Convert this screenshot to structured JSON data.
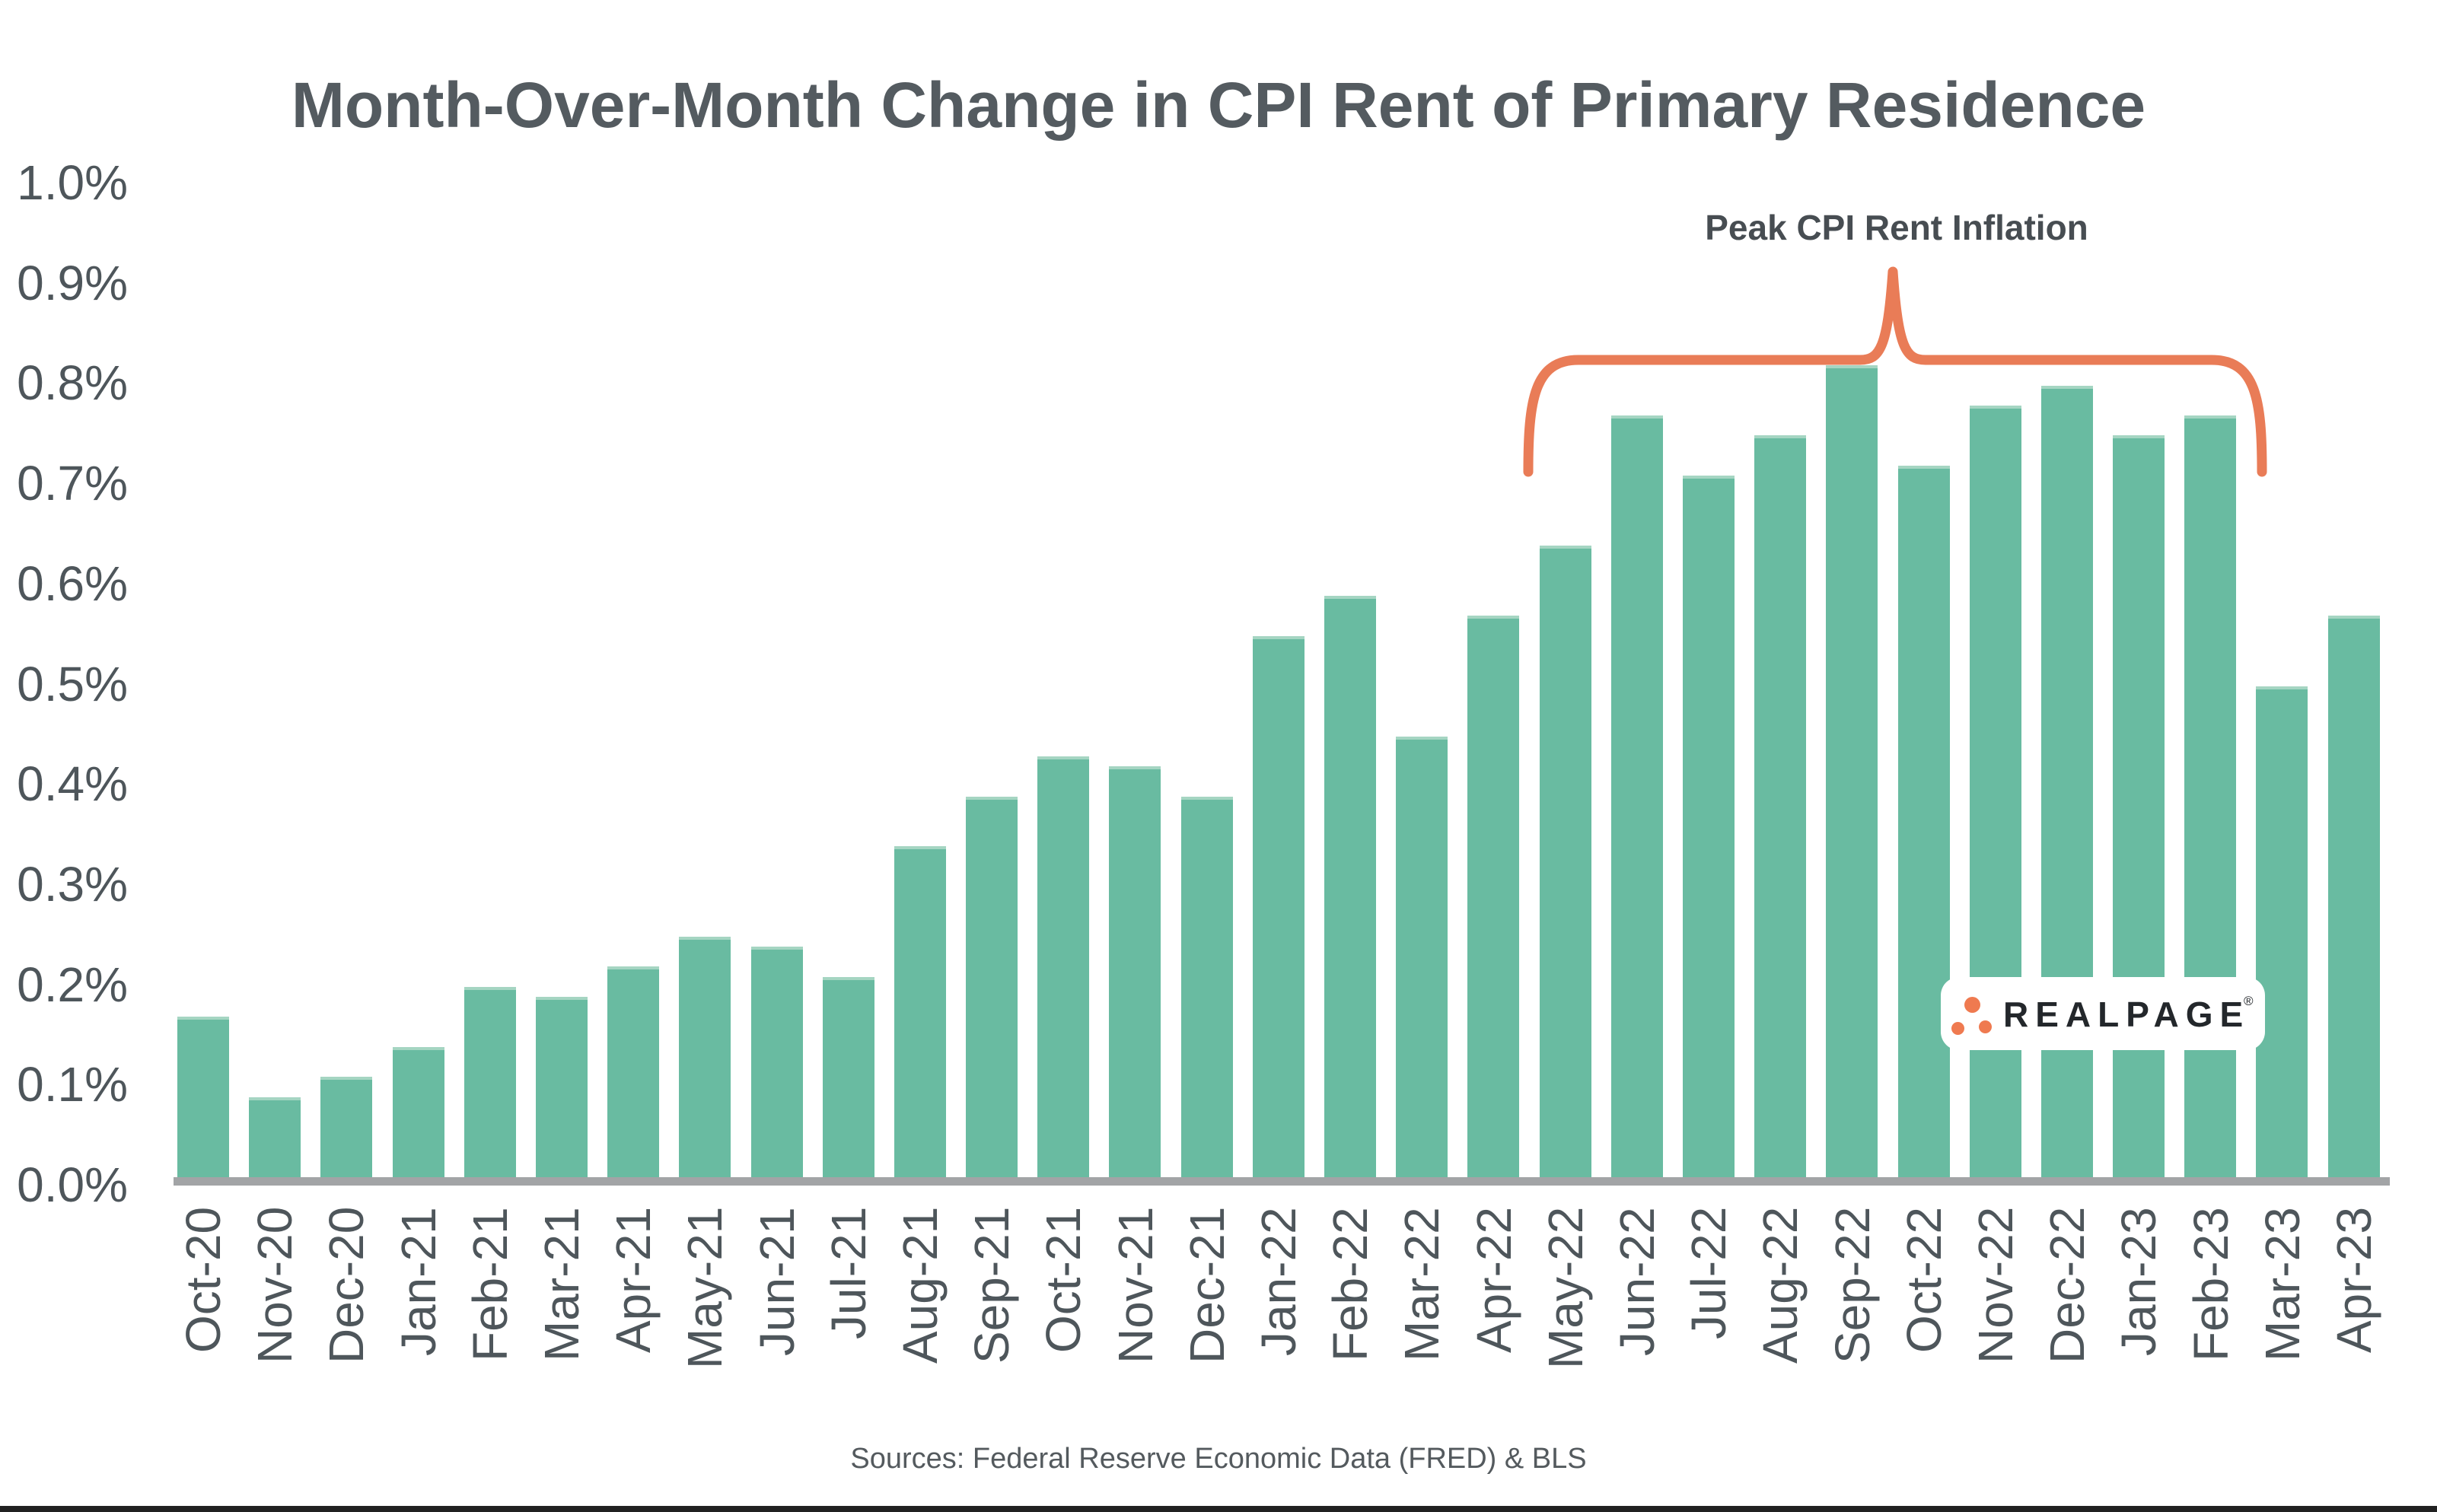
{
  "title": "Month-Over-Month Change in CPI Rent of Primary Residence",
  "annotation": {
    "label": "Peak CPI Rent Inflation",
    "span_from": "May-22",
    "span_to": "Feb-23"
  },
  "source": "Sources: Federal Reserve Economic Data (FRED) & BLS",
  "logo": {
    "text": "REALPAGE",
    "registered_mark": "®"
  },
  "colors": {
    "bar_teal": "#69BBA1",
    "bar_teal_light_cap": "#A5D5C2",
    "annotation_orange": "#E97C57",
    "logo_dot_orange": "#EF7A50",
    "text_dark_slate": "#4E565B",
    "axis_gray": "#A2A4A6",
    "footer_bar_dark": "#212121"
  },
  "chart_data": {
    "type": "bar",
    "title": "Month-Over-Month Change in CPI Rent of Primary Residence",
    "unit": "percent",
    "categories": [
      "Oct-20",
      "Nov-20",
      "Dec-20",
      "Jan-21",
      "Feb-21",
      "Mar-21",
      "Apr-21",
      "May-21",
      "Jun-21",
      "Jul-21",
      "Aug-21",
      "Sep-21",
      "Oct-21",
      "Nov-21",
      "Dec-21",
      "Jan-22",
      "Feb-22",
      "Mar-22",
      "Apr-22",
      "May-22",
      "Jun-22",
      "Jul-22",
      "Aug-22",
      "Sep-22",
      "Oct-22",
      "Nov-22",
      "Dec-22",
      "Jan-23",
      "Feb-23",
      "Mar-23",
      "Apr-23"
    ],
    "values": [
      0.16,
      0.08,
      0.1,
      0.13,
      0.19,
      0.18,
      0.21,
      0.24,
      0.23,
      0.2,
      0.33,
      0.38,
      0.42,
      0.41,
      0.38,
      0.54,
      0.58,
      0.44,
      0.56,
      0.63,
      0.76,
      0.7,
      0.74,
      0.81,
      0.71,
      0.77,
      0.79,
      0.74,
      0.76,
      0.49,
      0.56
    ],
    "xlabel": "",
    "ylabel": "",
    "ylim": [
      0.0,
      1.0
    ],
    "y_ticks": [
      "1.0%",
      "0.9%",
      "0.8%",
      "0.7%",
      "0.6%",
      "0.5%",
      "0.4%",
      "0.3%",
      "0.2%",
      "0.1%",
      "0.0%"
    ],
    "grid": false,
    "legend": false,
    "annotated_peak_period": [
      "May-22",
      "Jun-22",
      "Jul-22",
      "Aug-22",
      "Sep-22",
      "Oct-22",
      "Nov-22",
      "Dec-22",
      "Jan-23",
      "Feb-23"
    ]
  }
}
